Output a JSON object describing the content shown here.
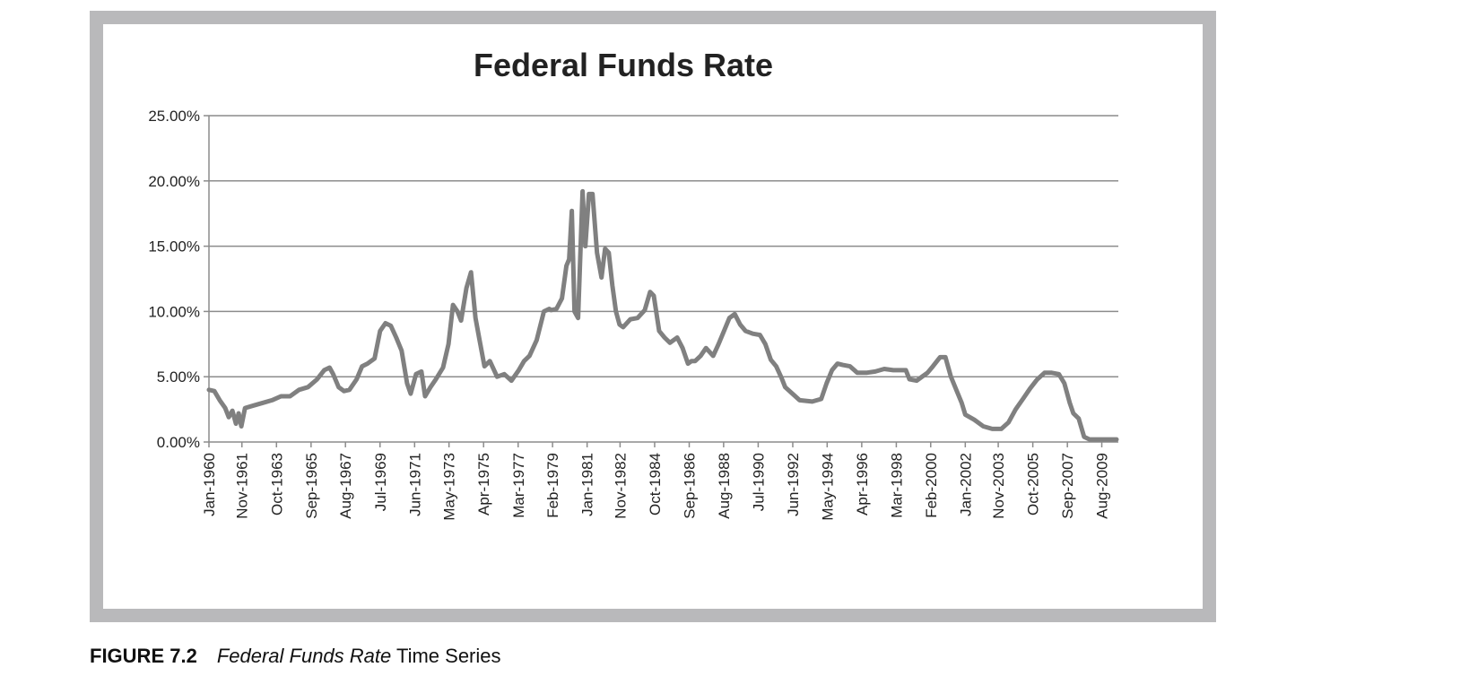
{
  "caption": {
    "label": "FIGURE 7.2",
    "title_italic": "Federal Funds Rate",
    "title_rest": " Time Series"
  },
  "colors": {
    "frame": "#b9b9bb",
    "line": "#808080",
    "grid": "#8c8c8c",
    "text": "#222222"
  },
  "chart_data": {
    "type": "line",
    "title": "Federal Funds Rate",
    "xlabel": "",
    "ylabel": "",
    "ylim": [
      0,
      0.25
    ],
    "grid": true,
    "legend": "none",
    "y_ticks": [
      0,
      0.05,
      0.1,
      0.15,
      0.2,
      0.25
    ],
    "y_tick_labels": [
      "0.00%",
      "5.00%",
      "10.00%",
      "15.00%",
      "20.00%",
      "25.00%"
    ],
    "x_range": [
      1960.0,
      2010.5
    ],
    "x_ticks": [
      1960.0,
      1961.83,
      1963.75,
      1965.67,
      1967.58,
      1969.5,
      1971.42,
      1973.33,
      1975.25,
      1977.17,
      1979.08,
      1981.0,
      1982.83,
      1984.75,
      1986.67,
      1988.58,
      1990.5,
      1992.42,
      1994.33,
      1996.25,
      1998.17,
      2000.08,
      2002.0,
      2003.83,
      2005.75,
      2007.67,
      2009.58
    ],
    "x_tick_labels": [
      "Jan-1960",
      "Nov-1961",
      "Oct-1963",
      "Sep-1965",
      "Aug-1967",
      "Jul-1969",
      "Jun-1971",
      "May-1973",
      "Apr-1975",
      "Mar-1977",
      "Feb-1979",
      "Jan-1981",
      "Nov-1982",
      "Oct-1984",
      "Sep-1986",
      "Aug-1988",
      "Jul-1990",
      "Jun-1992",
      "May-1994",
      "Apr-1996",
      "Mar-1998",
      "Feb-2000",
      "Jan-2002",
      "Nov-2003",
      "Oct-2005",
      "Sep-2007",
      "Aug-2009"
    ],
    "series": [
      {
        "name": "Federal Funds Rate",
        "x": [
          1960.0,
          1960.3,
          1960.6,
          1960.9,
          1961.1,
          1961.3,
          1961.5,
          1961.65,
          1961.8,
          1962.0,
          1962.5,
          1963.0,
          1963.5,
          1964.0,
          1964.5,
          1965.0,
          1965.5,
          1966.0,
          1966.4,
          1966.7,
          1966.9,
          1967.2,
          1967.5,
          1967.8,
          1968.2,
          1968.5,
          1968.8,
          1969.2,
          1969.5,
          1969.8,
          1970.1,
          1970.4,
          1970.7,
          1971.0,
          1971.2,
          1971.5,
          1971.8,
          1972.0,
          1972.3,
          1972.6,
          1973.0,
          1973.3,
          1973.55,
          1973.8,
          1974.0,
          1974.3,
          1974.55,
          1974.8,
          1975.0,
          1975.3,
          1975.6,
          1976.0,
          1976.4,
          1976.8,
          1977.2,
          1977.5,
          1977.8,
          1978.2,
          1978.6,
          1978.9,
          1979.0,
          1979.3,
          1979.6,
          1979.85,
          1980.0,
          1980.15,
          1980.3,
          1980.5,
          1980.75,
          1980.9,
          1981.1,
          1981.3,
          1981.55,
          1981.8,
          1982.0,
          1982.2,
          1982.4,
          1982.6,
          1982.8,
          1983.0,
          1983.4,
          1983.8,
          1984.2,
          1984.5,
          1984.7,
          1985.0,
          1985.3,
          1985.6,
          1986.0,
          1986.3,
          1986.6,
          1986.8,
          1987.0,
          1987.3,
          1987.6,
          1988.0,
          1988.3,
          1988.6,
          1988.9,
          1989.2,
          1989.5,
          1989.8,
          1990.2,
          1990.6,
          1990.9,
          1991.2,
          1991.5,
          1991.8,
          1992.0,
          1992.4,
          1992.8,
          1993.5,
          1994.0,
          1994.3,
          1994.6,
          1994.9,
          1995.2,
          1995.6,
          1996.0,
          1996.5,
          1997.0,
          1997.5,
          1998.0,
          1998.4,
          1998.7,
          1998.9,
          1999.3,
          1999.6,
          1999.9,
          2000.2,
          2000.6,
          2000.9,
          2001.2,
          2001.5,
          2001.8,
          2002.0,
          2002.5,
          2003.0,
          2003.5,
          2004.0,
          2004.4,
          2004.8,
          2005.2,
          2005.6,
          2006.0,
          2006.4,
          2006.8,
          2007.2,
          2007.5,
          2007.8,
          2008.0,
          2008.3,
          2008.6,
          2008.9,
          2009.2,
          2009.6,
          2010.0,
          2010.4
        ],
        "y": [
          0.04,
          0.039,
          0.032,
          0.026,
          0.019,
          0.024,
          0.014,
          0.022,
          0.012,
          0.026,
          0.028,
          0.03,
          0.032,
          0.035,
          0.035,
          0.04,
          0.042,
          0.048,
          0.055,
          0.057,
          0.052,
          0.042,
          0.039,
          0.04,
          0.048,
          0.058,
          0.06,
          0.064,
          0.085,
          0.091,
          0.089,
          0.08,
          0.07,
          0.045,
          0.037,
          0.052,
          0.054,
          0.035,
          0.042,
          0.048,
          0.057,
          0.075,
          0.105,
          0.1,
          0.093,
          0.118,
          0.13,
          0.095,
          0.08,
          0.058,
          0.062,
          0.05,
          0.052,
          0.047,
          0.055,
          0.062,
          0.066,
          0.078,
          0.1,
          0.102,
          0.101,
          0.102,
          0.11,
          0.135,
          0.14,
          0.177,
          0.1,
          0.095,
          0.192,
          0.15,
          0.19,
          0.19,
          0.145,
          0.126,
          0.148,
          0.145,
          0.12,
          0.1,
          0.09,
          0.088,
          0.094,
          0.095,
          0.101,
          0.115,
          0.112,
          0.085,
          0.08,
          0.076,
          0.08,
          0.072,
          0.06,
          0.062,
          0.062,
          0.066,
          0.072,
          0.066,
          0.075,
          0.085,
          0.095,
          0.098,
          0.09,
          0.085,
          0.083,
          0.082,
          0.075,
          0.063,
          0.058,
          0.049,
          0.042,
          0.037,
          0.032,
          0.031,
          0.033,
          0.045,
          0.055,
          0.06,
          0.059,
          0.058,
          0.053,
          0.053,
          0.054,
          0.056,
          0.055,
          0.055,
          0.055,
          0.048,
          0.047,
          0.05,
          0.053,
          0.058,
          0.065,
          0.065,
          0.05,
          0.04,
          0.03,
          0.021,
          0.017,
          0.012,
          0.01,
          0.01,
          0.015,
          0.025,
          0.033,
          0.041,
          0.048,
          0.053,
          0.053,
          0.052,
          0.045,
          0.03,
          0.022,
          0.018,
          0.004,
          0.002,
          0.002,
          0.002,
          0.002,
          0.002
        ]
      }
    ]
  }
}
